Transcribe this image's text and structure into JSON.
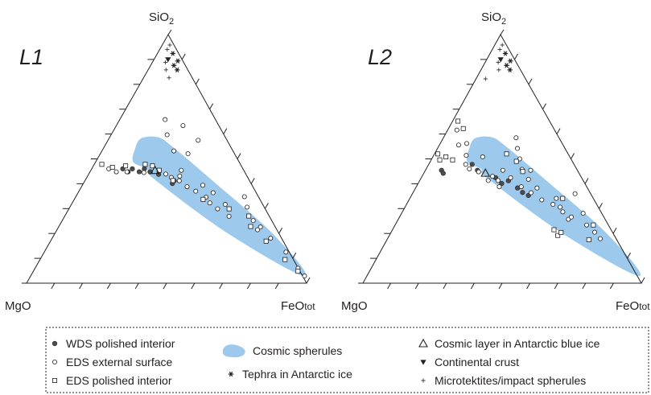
{
  "chart_data": [
    {
      "type": "scatter",
      "subtype": "ternary",
      "panel_label": "L1",
      "vertices": {
        "top": "SiO",
        "top_subscript": "2",
        "left": "MgO",
        "right": "FeO",
        "right_suffix": "tot"
      },
      "grid": false,
      "region": {
        "name": "Cosmic spherules",
        "color": "#9dc9ec",
        "outline": [
          {
            "SiO2": 0.583,
            "MgO": 0.302,
            "FeO": 0.115
          },
          {
            "SiO2": 0.587,
            "MgO": 0.24,
            "FeO": 0.173
          },
          {
            "SiO2": 0.547,
            "MgO": 0.206,
            "FeO": 0.247
          },
          {
            "SiO2": 0.41,
            "MgO": 0.131,
            "FeO": 0.459
          },
          {
            "SiO2": 0.197,
            "MgO": 0.022,
            "FeO": 0.781
          },
          {
            "SiO2": 0.029,
            "MgO": -0.007,
            "FeO": 0.978
          },
          {
            "SiO2": 0.2,
            "MgO": 0.182,
            "FeO": 0.618
          },
          {
            "SiO2": 0.418,
            "MgO": 0.337,
            "FeO": 0.245
          },
          {
            "SiO2": 0.459,
            "MgO": 0.343,
            "FeO": 0.198
          },
          {
            "SiO2": 0.488,
            "MgO": 0.378,
            "FeO": 0.134
          },
          {
            "SiO2": 0.541,
            "MgO": 0.345,
            "FeO": 0.114
          }
        ]
      },
      "series": [
        {
          "name": "WDS polished interior",
          "marker": "filled-circle",
          "points": [
            [
              0.46,
              0.429,
              0.111
            ],
            [
              0.448,
              0.416,
              0.136
            ],
            [
              0.46,
              0.395,
              0.145
            ],
            [
              0.448,
              0.376,
              0.176
            ],
            [
              0.46,
              0.352,
              0.188
            ],
            [
              0.448,
              0.337,
              0.215
            ],
            [
              0.438,
              0.312,
              0.25
            ],
            [
              0.412,
              0.269,
              0.319
            ],
            [
              0.401,
              0.281,
              0.318
            ]
          ]
        },
        {
          "name": "EDS external surface",
          "marker": "open-circle",
          "points": [
            [
              0.46,
              0.479,
              0.061
            ],
            [
              0.448,
              0.458,
              0.094
            ],
            [
              0.448,
              0.42,
              0.132
            ],
            [
              0.445,
              0.361,
              0.194
            ],
            [
              0.439,
              0.286,
              0.275
            ],
            [
              0.425,
              0.273,
              0.302
            ],
            [
              0.431,
              0.24,
              0.329
            ],
            [
              0.412,
              0.251,
              0.337
            ],
            [
              0.388,
              0.235,
              0.377
            ],
            [
              0.37,
              0.213,
              0.417
            ],
            [
              0.346,
              0.188,
              0.466
            ],
            [
              0.323,
              0.186,
              0.491
            ],
            [
              0.299,
              0.17,
              0.531
            ],
            [
              0.269,
              0.144,
              0.587
            ],
            [
              0.215,
              0.069,
              0.716
            ],
            [
              0.181,
              0.039,
              0.78
            ],
            [
              0.125,
              0.012,
              0.863
            ],
            [
              0.06,
              0.001,
              0.939
            ],
            [
              0.029,
              -0.007,
              0.978
            ],
            [
              0.597,
              0.203,
              0.2
            ],
            [
              0.658,
              0.18,
              0.162
            ],
            [
              0.634,
              0.128,
              0.238
            ],
            [
              0.575,
              0.103,
              0.322
            ],
            [
              0.521,
              0.166,
              0.313
            ],
            [
              0.532,
              0.211,
              0.257
            ],
            [
              0.454,
              0.223,
              0.323
            ],
            [
              0.394,
              0.176,
              0.43
            ],
            [
              0.364,
              0.154,
              0.482
            ],
            [
              0.317,
              0.134,
              0.549
            ],
            [
              0.252,
              0.066,
              0.682
            ],
            [
              0.226,
              0.053,
              0.721
            ],
            [
              0.348,
              0.05,
              0.602
            ],
            [
              0.306,
              0.061,
              0.633
            ]
          ]
        },
        {
          "name": "EDS polished interior",
          "marker": "open-square",
          "points": [
            [
              0.478,
              0.495,
              0.027
            ],
            [
              0.466,
              0.463,
              0.071
            ],
            [
              0.472,
              0.413,
              0.115
            ],
            [
              0.478,
              0.34,
              0.182
            ],
            [
              0.472,
              0.317,
              0.211
            ],
            [
              0.454,
              0.302,
              0.244
            ],
            [
              0.413,
              0.273,
              0.314
            ],
            [
              0.337,
              0.203,
              0.46
            ],
            [
              0.299,
              0.129,
              0.572
            ],
            [
              0.27,
              0.073,
              0.657
            ],
            [
              0.228,
              0.087,
              0.685
            ],
            [
              0.169,
              0.061,
              0.77
            ],
            [
              0.095,
              0.03,
              0.875
            ],
            [
              0.048,
              0.007,
              0.945
            ]
          ]
        },
        {
          "name": "Tephra in Antarctic ice",
          "marker": "asterisk",
          "points": [
            [
              0.924,
              0.021,
              0.055
            ],
            [
              0.894,
              0.018,
              0.088
            ],
            [
              0.876,
              0.041,
              0.083
            ],
            [
              0.858,
              0.038,
              0.104
            ]
          ]
        },
        {
          "name": "Continental crust",
          "marker": "filled-triangle-down",
          "points": [
            [
              0.9,
              0.05,
              0.05
            ]
          ]
        },
        {
          "name": "Microtektites/impact spherules",
          "marker": "plus",
          "points": [
            [
              0.958,
              0.015,
              0.027
            ],
            [
              0.94,
              0.033,
              0.027
            ],
            [
              0.888,
              0.065,
              0.047
            ],
            [
              0.858,
              0.078,
              0.064
            ],
            [
              0.826,
              0.083,
              0.091
            ]
          ]
        },
        {
          "name": "Cosmic layer in Antarctic blue ice",
          "marker": "open-triangle-up",
          "points": [
            [
              0.454,
              0.317,
              0.229
            ]
          ]
        }
      ]
    },
    {
      "type": "scatter",
      "subtype": "ternary",
      "panel_label": "L2",
      "vertices": {
        "top": "SiO",
        "top_subscript": "2",
        "left": "MgO",
        "right": "FeO",
        "right_suffix": "tot"
      },
      "grid": false,
      "region": {
        "name": "Cosmic spherules",
        "color": "#9dc9ec",
        "outline": [
          {
            "SiO2": 0.583,
            "MgO": 0.302,
            "FeO": 0.115
          },
          {
            "SiO2": 0.587,
            "MgO": 0.24,
            "FeO": 0.173
          },
          {
            "SiO2": 0.547,
            "MgO": 0.206,
            "FeO": 0.247
          },
          {
            "SiO2": 0.41,
            "MgO": 0.131,
            "FeO": 0.459
          },
          {
            "SiO2": 0.197,
            "MgO": 0.022,
            "FeO": 0.781
          },
          {
            "SiO2": 0.029,
            "MgO": -0.007,
            "FeO": 0.978
          },
          {
            "SiO2": 0.2,
            "MgO": 0.182,
            "FeO": 0.618
          },
          {
            "SiO2": 0.418,
            "MgO": 0.337,
            "FeO": 0.245
          },
          {
            "SiO2": 0.459,
            "MgO": 0.343,
            "FeO": 0.198
          },
          {
            "SiO2": 0.488,
            "MgO": 0.378,
            "FeO": 0.134
          },
          {
            "SiO2": 0.541,
            "MgO": 0.345,
            "FeO": 0.114
          }
        ]
      },
      "series": [
        {
          "name": "WDS polished interior",
          "marker": "filled-circle",
          "points": [
            [
              0.454,
              0.488,
              0.058
            ],
            [
              0.442,
              0.488,
              0.07
            ],
            [
              0.478,
              0.366,
              0.156
            ],
            [
              0.454,
              0.359,
              0.187
            ],
            [
              0.424,
              0.309,
              0.267
            ],
            [
              0.401,
              0.299,
              0.3
            ],
            [
              0.412,
              0.269,
              0.319
            ],
            [
              0.383,
              0.251,
              0.366
            ],
            [
              0.365,
              0.242,
              0.393
            ],
            [
              0.353,
              0.227,
              0.42
            ]
          ]
        },
        {
          "name": "EDS external surface",
          "marker": "open-circle",
          "points": [
            [
              0.616,
              0.351,
              0.033
            ],
            [
              0.556,
              0.375,
              0.069
            ],
            [
              0.514,
              0.369,
              0.117
            ],
            [
              0.478,
              0.389,
              0.133
            ],
            [
              0.46,
              0.385,
              0.155
            ],
            [
              0.448,
              0.358,
              0.194
            ],
            [
              0.413,
              0.341,
              0.246
            ],
            [
              0.562,
              0.343,
              0.095
            ],
            [
              0.508,
              0.313,
              0.179
            ],
            [
              0.43,
              0.317,
              0.253
            ],
            [
              0.413,
              0.306,
              0.281
            ],
            [
              0.388,
              0.314,
              0.298
            ],
            [
              0.454,
              0.268,
              0.278
            ],
            [
              0.424,
              0.255,
              0.321
            ],
            [
              0.388,
              0.235,
              0.377
            ],
            [
              0.364,
              0.212,
              0.424
            ],
            [
              0.335,
              0.188,
              0.477
            ],
            [
              0.317,
              0.157,
              0.526
            ],
            [
              0.287,
              0.137,
              0.576
            ],
            [
              0.257,
              0.132,
              0.611
            ],
            [
              0.585,
              0.154,
              0.261
            ],
            [
              0.542,
              0.171,
              0.287
            ],
            [
              0.5,
              0.184,
              0.316
            ],
            [
              0.458,
              0.197,
              0.345
            ],
            [
              0.418,
              0.194,
              0.388
            ],
            [
              0.383,
              0.181,
              0.436
            ],
            [
              0.341,
              0.133,
              0.526
            ],
            [
              0.306,
              0.137,
              0.557
            ],
            [
              0.266,
              0.117,
              0.617
            ],
            [
              0.234,
              0.078,
              0.688
            ],
            [
              0.205,
              0.064,
              0.731
            ],
            [
              0.179,
              0.057,
              0.764
            ],
            [
              0.36,
              0.056,
              0.584
            ],
            [
              0.281,
              0.067,
              0.652
            ],
            [
              0.454,
              0.168,
              0.378
            ]
          ]
        },
        {
          "name": "EDS polished interior",
          "marker": "open-square",
          "points": [
            [
              0.652,
              0.329,
              0.019
            ],
            [
              0.622,
              0.325,
              0.053
            ],
            [
              0.52,
              0.468,
              0.012
            ],
            [
              0.496,
              0.473,
              0.031
            ],
            [
              0.508,
              0.445,
              0.047
            ],
            [
              0.496,
              0.427,
              0.077
            ],
            [
              0.52,
              0.221,
              0.259
            ],
            [
              0.49,
              0.201,
              0.309
            ],
            [
              0.449,
              0.199,
              0.352
            ],
            [
              0.341,
              0.11,
              0.549
            ],
            [
              0.234,
              0.054,
              0.712
            ],
            [
              0.215,
              0.205,
              0.58
            ],
            [
              0.192,
              0.203,
              0.605
            ],
            [
              0.204,
              0.185,
              0.611
            ],
            [
              0.175,
              0.1,
              0.725
            ]
          ]
        },
        {
          "name": "Tephra in Antarctic ice",
          "marker": "asterisk",
          "points": [
            [
              0.924,
              0.021,
              0.055
            ],
            [
              0.894,
              0.018,
              0.088
            ],
            [
              0.876,
              0.041,
              0.083
            ],
            [
              0.858,
              0.038,
              0.104
            ]
          ]
        },
        {
          "name": "Continental crust",
          "marker": "filled-triangle-down",
          "points": [
            [
              0.9,
              0.05,
              0.05
            ]
          ]
        },
        {
          "name": "Microtektites/impact spherules",
          "marker": "plus",
          "points": [
            [
              0.958,
              0.015,
              0.027
            ],
            [
              0.94,
              0.033,
              0.027
            ],
            [
              0.888,
              0.065,
              0.047
            ],
            [
              0.858,
              0.078,
              0.064
            ],
            [
              0.822,
              0.144,
              0.034
            ]
          ]
        },
        {
          "name": "Cosmic layer in Antarctic blue ice",
          "marker": "open-triangle-up",
          "points": [
            [
              0.443,
              0.336,
              0.221
            ]
          ]
        }
      ]
    }
  ],
  "legend": {
    "placement": "bottom",
    "items": [
      {
        "label": "WDS polished interior",
        "marker": "filled-circle"
      },
      {
        "label": "EDS external surface",
        "marker": "open-circle"
      },
      {
        "label": "EDS polished interior",
        "marker": "open-square"
      },
      {
        "label": "Cosmic spherules",
        "marker": "blue-blob"
      },
      {
        "label": "Tephra in Antarctic ice",
        "marker": "asterisk"
      },
      {
        "label": "Cosmic layer in Antarctic blue ice",
        "marker": "open-triangle-up"
      },
      {
        "label": "Continental crust",
        "marker": "filled-triangle-down"
      },
      {
        "label": "Microtektites/impact spherules",
        "marker": "plus"
      }
    ]
  },
  "colors": {
    "region": "#9dc9ec",
    "ink": "#231f20",
    "marker_fill_dark": "#4d4d4f"
  }
}
